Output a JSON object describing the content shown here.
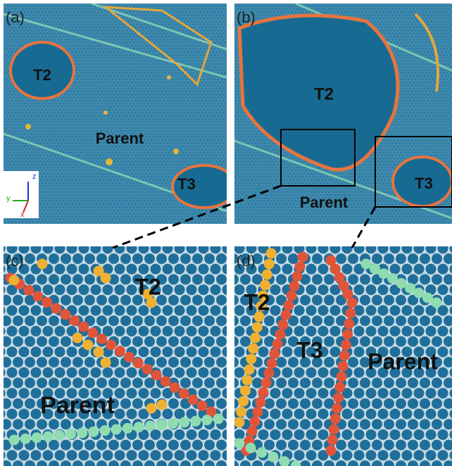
{
  "panels": [
    {
      "label": "(a)",
      "regions": [
        "T2",
        "Parent",
        "T3"
      ]
    },
    {
      "label": "(b)",
      "regions": [
        "T2",
        "Parent",
        "T3"
      ]
    },
    {
      "label": "(c)",
      "regions": [
        "T2",
        "Parent"
      ]
    },
    {
      "label": "(d)",
      "regions": [
        "T2",
        "T3",
        "Parent"
      ]
    }
  ],
  "triad": [
    "z",
    "y",
    "x"
  ]
}
